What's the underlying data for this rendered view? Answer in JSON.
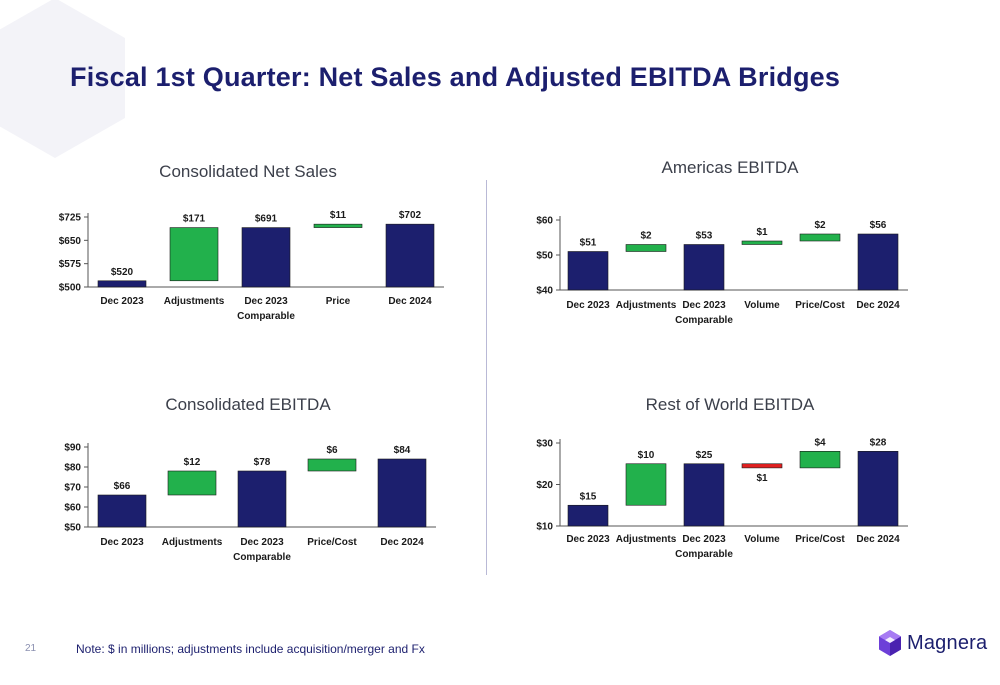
{
  "slide": {
    "title": "Fiscal 1st Quarter: Net Sales and Adjusted EBITDA Bridges",
    "page_number": "21",
    "footnote": "Note: $ in millions; adjustments include acquisition/merger and Fx",
    "brand": "Magnera"
  },
  "colors": {
    "total": "#1c1f6e",
    "increase": "#22b14c",
    "decrease": "#e02020",
    "axis_text": "#1a1a1a",
    "title": "#1c1f6e"
  },
  "chart_data": [
    {
      "title": "Consolidated Net Sales",
      "type": "bar",
      "subtype": "waterfall",
      "categories": [
        [
          "Dec 2023"
        ],
        [
          "Adjustments"
        ],
        [
          "Dec 2023",
          "Comparable"
        ],
        [
          "Price"
        ],
        [
          "Dec 2024"
        ]
      ],
      "bars": [
        {
          "kind": "total",
          "from": 500,
          "to": 520,
          "label": "$520"
        },
        {
          "kind": "increase",
          "from": 520,
          "to": 691,
          "label": "$171"
        },
        {
          "kind": "total",
          "from": 500,
          "to": 691,
          "label": "$691"
        },
        {
          "kind": "increase",
          "from": 691,
          "to": 702,
          "label": "$11"
        },
        {
          "kind": "total",
          "from": 500,
          "to": 702,
          "label": "$702"
        }
      ],
      "ylim": [
        500,
        725
      ],
      "yticks": [
        500,
        575,
        650,
        725
      ],
      "ytick_labels": [
        "$500",
        "$575",
        "$650",
        "$725"
      ]
    },
    {
      "title": "Americas EBITDA",
      "type": "bar",
      "subtype": "waterfall",
      "categories": [
        [
          "Dec 2023"
        ],
        [
          "Adjustments"
        ],
        [
          "Dec 2023",
          "Comparable"
        ],
        [
          "Volume"
        ],
        [
          "Price/Cost"
        ],
        [
          "Dec 2024"
        ]
      ],
      "bars": [
        {
          "kind": "total",
          "from": 40,
          "to": 51,
          "label": "$51"
        },
        {
          "kind": "increase",
          "from": 51,
          "to": 53,
          "label": "$2"
        },
        {
          "kind": "total",
          "from": 40,
          "to": 53,
          "label": "$53"
        },
        {
          "kind": "increase",
          "from": 53,
          "to": 54,
          "label": "$1"
        },
        {
          "kind": "increase",
          "from": 54,
          "to": 56,
          "label": "$2"
        },
        {
          "kind": "total",
          "from": 40,
          "to": 56,
          "label": "$56"
        }
      ],
      "ylim": [
        40,
        60
      ],
      "yticks": [
        40,
        50,
        60
      ],
      "ytick_labels": [
        "$40",
        "$50",
        "$60"
      ]
    },
    {
      "title": "Consolidated EBITDA",
      "type": "bar",
      "subtype": "waterfall",
      "categories": [
        [
          "Dec 2023"
        ],
        [
          "Adjustments"
        ],
        [
          "Dec 2023",
          "Comparable"
        ],
        [
          "Price/Cost"
        ],
        [
          "Dec 2024"
        ]
      ],
      "bars": [
        {
          "kind": "total",
          "from": 50,
          "to": 66,
          "label": "$66"
        },
        {
          "kind": "increase",
          "from": 66,
          "to": 78,
          "label": "$12"
        },
        {
          "kind": "total",
          "from": 50,
          "to": 78,
          "label": "$78"
        },
        {
          "kind": "increase",
          "from": 78,
          "to": 84,
          "label": "$6"
        },
        {
          "kind": "total",
          "from": 50,
          "to": 84,
          "label": "$84"
        }
      ],
      "ylim": [
        50,
        90
      ],
      "yticks": [
        50,
        60,
        70,
        80,
        90
      ],
      "ytick_labels": [
        "$50",
        "$60",
        "$70",
        "$80",
        "$90"
      ]
    },
    {
      "title": "Rest of World EBITDA",
      "type": "bar",
      "subtype": "waterfall",
      "categories": [
        [
          "Dec 2023"
        ],
        [
          "Adjustments"
        ],
        [
          "Dec 2023",
          "Comparable"
        ],
        [
          "Volume"
        ],
        [
          "Price/Cost"
        ],
        [
          "Dec 2024"
        ]
      ],
      "bars": [
        {
          "kind": "total",
          "from": 10,
          "to": 15,
          "label": "$15"
        },
        {
          "kind": "increase",
          "from": 15,
          "to": 25,
          "label": "$10"
        },
        {
          "kind": "total",
          "from": 10,
          "to": 25,
          "label": "$25"
        },
        {
          "kind": "decrease",
          "from": 25,
          "to": 24,
          "label": "$1"
        },
        {
          "kind": "increase",
          "from": 24,
          "to": 28,
          "label": "$4"
        },
        {
          "kind": "total",
          "from": 10,
          "to": 28,
          "label": "$28"
        }
      ],
      "ylim": [
        10,
        30
      ],
      "yticks": [
        10,
        20,
        30
      ],
      "ytick_labels": [
        "$10",
        "$20",
        "$30"
      ]
    }
  ]
}
